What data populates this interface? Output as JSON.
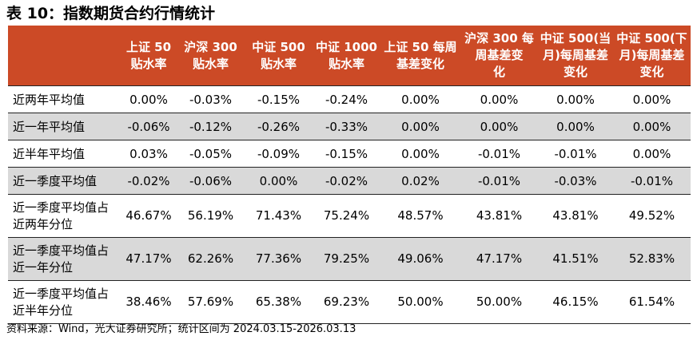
{
  "title": "表 10：指数期货合约行情统计",
  "colors": {
    "header_bg": "#cc4a26",
    "header_text": "#ffffff",
    "shaded_row": "#d9d9d9"
  },
  "table": {
    "headers": [
      "",
      "上证 50\n贴水率",
      "沪深 300\n贴水率",
      "中证 500\n贴水率",
      "中证 1000\n贴水率",
      "上证 50 每周\n基差变化",
      "沪深 300 每\n周基差变\n化",
      "中证 500(当\n月)每周基差\n变化",
      "中证 500(下\n月)每周基差\n变化"
    ],
    "rows": [
      {
        "label": "近两年平均值",
        "values": [
          "0.00%",
          "-0.03%",
          "-0.15%",
          "-0.24%",
          "0.00%",
          "0.00%",
          "0.00%",
          "0.00%"
        ]
      },
      {
        "label": "近一年平均值",
        "values": [
          "-0.06%",
          "-0.12%",
          "-0.26%",
          "-0.33%",
          "0.00%",
          "0.00%",
          "0.00%",
          "0.00%"
        ]
      },
      {
        "label": "近半年平均值",
        "values": [
          "0.03%",
          "-0.05%",
          "-0.09%",
          "-0.15%",
          "0.00%",
          "-0.01%",
          "-0.01%",
          "0.00%"
        ]
      },
      {
        "label": "近一季度平均值",
        "values": [
          "-0.02%",
          "-0.06%",
          "0.00%",
          "-0.02%",
          "0.02%",
          "-0.01%",
          "-0.03%",
          "-0.01%"
        ]
      },
      {
        "label": "近一季度平均值占近两年分位",
        "values": [
          "46.67%",
          "56.19%",
          "71.43%",
          "75.24%",
          "48.57%",
          "43.81%",
          "43.81%",
          "49.52%"
        ]
      },
      {
        "label": "近一季度平均值占近一年分位",
        "values": [
          "47.17%",
          "62.26%",
          "77.36%",
          "79.25%",
          "49.06%",
          "47.17%",
          "41.51%",
          "52.83%"
        ]
      },
      {
        "label": "近一季度平均值占近半年分位",
        "values": [
          "38.46%",
          "57.69%",
          "65.38%",
          "69.23%",
          "50.00%",
          "50.00%",
          "46.15%",
          "61.54%"
        ]
      }
    ]
  },
  "source": "资料来源：Wind，光大证券研究所；统计区间为 2024.03.15-2026.03.13"
}
